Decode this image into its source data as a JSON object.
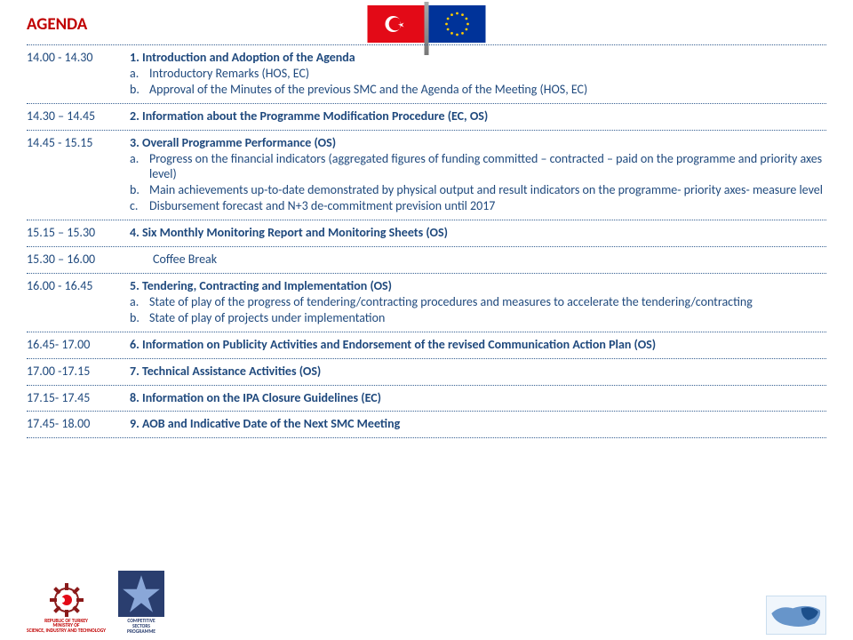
{
  "title": "AGENDA",
  "colors": {
    "accent_red": "#c00000",
    "text_blue": "#1f497d",
    "dot_blue": "#376092"
  },
  "flags": {
    "turkey_bg": "#e30a17",
    "eu_bg": "#003399",
    "eu_star": "#ffcc00"
  },
  "rows": [
    {
      "time": "14.00 - 14.30",
      "heading": "1. Introduction and Adoption of the Agenda",
      "subs": [
        {
          "lbl": "a.",
          "txt": "Introductory Remarks (HOS, EC)"
        },
        {
          "lbl": "b.",
          "txt": "Approval of the Minutes of the previous SMC and the Agenda of the Meeting (HOS, EC)"
        }
      ]
    },
    {
      "time": "14.30 – 14.45",
      "heading": "2. Information about the Programme Modification Procedure (EC, OS)"
    },
    {
      "time": "14.45 - 15.15",
      "heading": "3. Overall Programme Performance (OS)",
      "subs": [
        {
          "lbl": "a.",
          "txt": "Progress on the financial indicators (aggregated figures of funding committed – contracted – paid on the programme and priority axes level)"
        },
        {
          "lbl": "b.",
          "txt": "Main achievements up-to-date demonstrated by physical output and result indicators on the programme- priority axes- measure level"
        },
        {
          "lbl": "c.",
          "txt": "Disbursement forecast and N+3 de-commitment prevision until 2017"
        }
      ]
    },
    {
      "time": "15.15 – 15.30",
      "heading": "4. Six Monthly Monitoring Report and Monitoring Sheets (OS)"
    },
    {
      "time": "15.30 – 16.00",
      "heading": "Coffee Break",
      "coffee": true
    },
    {
      "time": "16.00 - 16.45",
      "heading": "5. Tendering, Contracting and Implementation (OS)",
      "subs": [
        {
          "lbl": "a.",
          "txt": "State of play of the progress of tendering/contracting procedures and measures to accelerate the tendering/contracting"
        },
        {
          "lbl": "b.",
          "txt": "State of play of projects under implementation"
        }
      ]
    },
    {
      "time": "16.45- 17.00",
      "heading": "6. Information on Publicity Activities and Endorsement of  the revised Communication Action Plan (OS)"
    },
    {
      "time": "17.00 -17.15",
      "heading": "7. Technical Assistance Activities (OS)"
    },
    {
      "time": "17.15- 17.45",
      "heading": "8. Information on the IPA Closure Guidelines (EC)"
    },
    {
      "time": "17.45- 18.00",
      "heading": "9. AOB and Indicative Date of the Next SMC Meeting"
    }
  ],
  "footer": {
    "ministry_line1": "REPUBLIC OF TURKEY",
    "ministry_line2": "MINISTRY OF",
    "ministry_line3": "SCIENCE, INDUSTRY AND TECHNOLOGY",
    "csp_line1": "COMPETITIVE",
    "csp_line2": "SECTORS",
    "csp_line3": "PROGRAMME"
  }
}
